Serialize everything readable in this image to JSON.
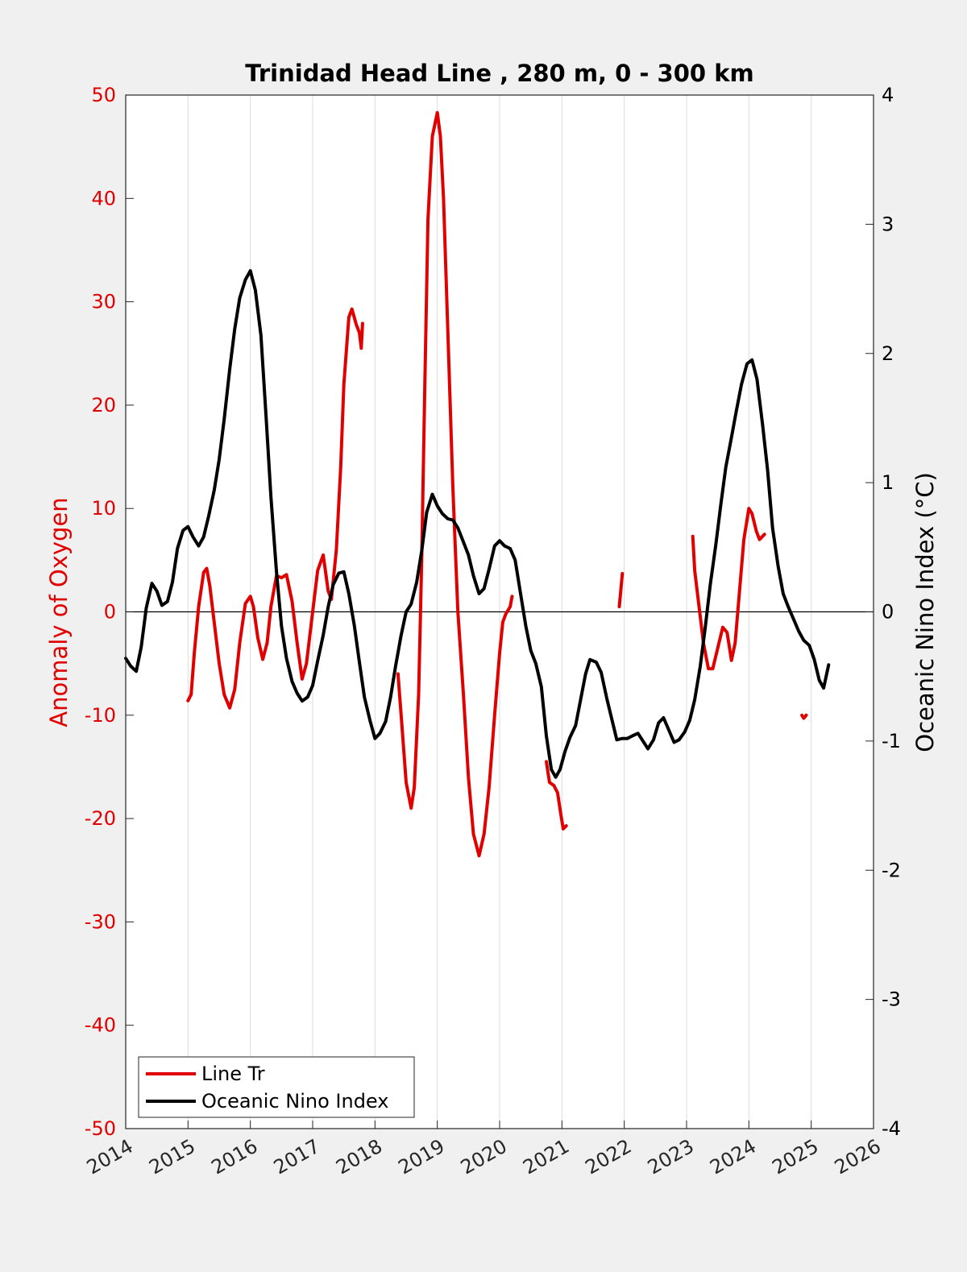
{
  "chart_data": {
    "type": "line",
    "title": "Trinidad Head Line , 280 m, 0 - 300 km",
    "xlabel": "",
    "ylabel_left": "Anomaly of Oxygen",
    "ylabel_right": "Oceanic Nino Index (°C)",
    "xlim": [
      2014,
      2026
    ],
    "ylim_left": [
      -50,
      50
    ],
    "ylim_right": [
      -4,
      4
    ],
    "x_ticks": [
      "2014",
      "2015",
      "2016",
      "2017",
      "2018",
      "2019",
      "2020",
      "2021",
      "2022",
      "2023",
      "2024",
      "2025",
      "2026"
    ],
    "y_ticks_left": [
      "-50",
      "-40",
      "-30",
      "-20",
      "-10",
      "0",
      "10",
      "20",
      "30",
      "40",
      "50"
    ],
    "y_ticks_right": [
      "-4",
      "-3",
      "-2",
      "-1",
      "0",
      "1",
      "2",
      "3",
      "4"
    ],
    "grid": "vertical",
    "zero_line": true,
    "legend_position": "bottom-left",
    "colors": {
      "oxygen": "#e00000",
      "oni": "#000000",
      "left_axis": "#e00000",
      "right_axis": "#000000"
    },
    "series": [
      {
        "name": "Line Tr",
        "axis": "left",
        "color": "#e00000",
        "segments": [
          [
            [
              2015.0,
              -8.6
            ],
            [
              2015.05,
              -8.0
            ],
            [
              2015.1,
              -4.0
            ],
            [
              2015.17,
              0.5
            ],
            [
              2015.25,
              3.8
            ],
            [
              2015.3,
              4.2
            ],
            [
              2015.35,
              2.5
            ],
            [
              2015.42,
              -1.0
            ],
            [
              2015.5,
              -5.0
            ],
            [
              2015.58,
              -8.0
            ],
            [
              2015.67,
              -9.3
            ],
            [
              2015.75,
              -7.5
            ],
            [
              2015.83,
              -3.0
            ],
            [
              2015.92,
              0.8
            ],
            [
              2016.0,
              1.5
            ],
            [
              2016.05,
              0.5
            ],
            [
              2016.12,
              -2.5
            ],
            [
              2016.2,
              -4.6
            ],
            [
              2016.27,
              -3.0
            ],
            [
              2016.33,
              0.5
            ],
            [
              2016.42,
              3.5
            ],
            [
              2016.5,
              3.3
            ],
            [
              2016.58,
              3.6
            ],
            [
              2016.67,
              1.0
            ],
            [
              2016.75,
              -3.0
            ],
            [
              2016.83,
              -6.5
            ],
            [
              2016.9,
              -5.0
            ],
            [
              2017.0,
              0.0
            ],
            [
              2017.08,
              4.0
            ],
            [
              2017.17,
              5.5
            ],
            [
              2017.25,
              2.0
            ],
            [
              2017.3,
              1.2
            ],
            [
              2017.38,
              6.0
            ],
            [
              2017.45,
              14.0
            ],
            [
              2017.5,
              22.0
            ],
            [
              2017.58,
              28.5
            ],
            [
              2017.63,
              29.3
            ],
            [
              2017.7,
              27.8
            ],
            [
              2017.75,
              27.0
            ],
            [
              2017.78,
              25.5
            ],
            [
              2017.8,
              27.9
            ]
          ],
          [
            [
              2018.37,
              -6.0
            ],
            [
              2018.42,
              -10.0
            ],
            [
              2018.5,
              -16.5
            ],
            [
              2018.58,
              -19.0
            ],
            [
              2018.63,
              -17.0
            ],
            [
              2018.7,
              -8.0
            ],
            [
              2018.75,
              5.0
            ],
            [
              2018.8,
              22.0
            ],
            [
              2018.85,
              38.0
            ],
            [
              2018.92,
              46.0
            ],
            [
              2019.0,
              48.3
            ],
            [
              2019.05,
              46.0
            ],
            [
              2019.1,
              40.0
            ],
            [
              2019.17,
              27.0
            ],
            [
              2019.25,
              12.0
            ],
            [
              2019.33,
              0.0
            ],
            [
              2019.42,
              -8.0
            ],
            [
              2019.5,
              -16.0
            ],
            [
              2019.58,
              -21.5
            ],
            [
              2019.67,
              -23.6
            ],
            [
              2019.75,
              -21.5
            ],
            [
              2019.83,
              -17.0
            ],
            [
              2019.92,
              -10.0
            ],
            [
              2020.0,
              -4.0
            ],
            [
              2020.05,
              -1.0
            ],
            [
              2020.1,
              -0.2
            ],
            [
              2020.17,
              0.5
            ],
            [
              2020.2,
              1.5
            ]
          ],
          [
            [
              2020.75,
              -14.5
            ],
            [
              2020.8,
              -16.5
            ],
            [
              2020.87,
              -16.8
            ],
            [
              2020.93,
              -17.5
            ],
            [
              2020.98,
              -19.5
            ],
            [
              2021.02,
              -21.0
            ],
            [
              2021.07,
              -20.7
            ]
          ],
          [
            [
              2021.92,
              0.5
            ],
            [
              2021.97,
              3.7
            ]
          ],
          [
            [
              2023.1,
              7.3
            ],
            [
              2023.13,
              4.0
            ],
            [
              2023.2,
              0.5
            ],
            [
              2023.27,
              -3.0
            ],
            [
              2023.35,
              -5.5
            ],
            [
              2023.42,
              -5.5
            ],
            [
              2023.5,
              -3.5
            ],
            [
              2023.58,
              -1.5
            ],
            [
              2023.65,
              -2.0
            ],
            [
              2023.72,
              -4.7
            ],
            [
              2023.78,
              -3.0
            ],
            [
              2023.85,
              2.0
            ],
            [
              2023.92,
              7.0
            ],
            [
              2024.0,
              10.0
            ],
            [
              2024.05,
              9.5
            ],
            [
              2024.12,
              7.8
            ],
            [
              2024.17,
              7.0
            ],
            [
              2024.25,
              7.5
            ]
          ],
          [
            [
              2024.85,
              -10.0
            ],
            [
              2024.88,
              -10.3
            ],
            [
              2024.92,
              -10.0
            ]
          ]
        ]
      },
      {
        "name": "Oceanic Nino Index",
        "axis": "right",
        "color": "#000000",
        "segments": [
          [
            [
              2014.0,
              -0.36
            ],
            [
              2014.08,
              -0.42
            ],
            [
              2014.17,
              -0.46
            ],
            [
              2014.25,
              -0.27
            ],
            [
              2014.33,
              0.03
            ],
            [
              2014.42,
              0.22
            ],
            [
              2014.5,
              0.16
            ],
            [
              2014.58,
              0.05
            ],
            [
              2014.67,
              0.08
            ],
            [
              2014.75,
              0.23
            ],
            [
              2014.83,
              0.49
            ],
            [
              2014.92,
              0.63
            ],
            [
              2015.0,
              0.66
            ],
            [
              2015.08,
              0.58
            ],
            [
              2015.17,
              0.51
            ],
            [
              2015.25,
              0.58
            ],
            [
              2015.33,
              0.74
            ],
            [
              2015.42,
              0.94
            ],
            [
              2015.5,
              1.18
            ],
            [
              2015.58,
              1.49
            ],
            [
              2015.67,
              1.88
            ],
            [
              2015.75,
              2.19
            ],
            [
              2015.83,
              2.43
            ],
            [
              2015.92,
              2.57
            ],
            [
              2016.0,
              2.64
            ],
            [
              2016.08,
              2.49
            ],
            [
              2016.17,
              2.14
            ],
            [
              2016.25,
              1.53
            ],
            [
              2016.33,
              0.89
            ],
            [
              2016.42,
              0.31
            ],
            [
              2016.5,
              -0.11
            ],
            [
              2016.58,
              -0.36
            ],
            [
              2016.67,
              -0.54
            ],
            [
              2016.75,
              -0.63
            ],
            [
              2016.83,
              -0.69
            ],
            [
              2016.92,
              -0.66
            ],
            [
              2017.0,
              -0.57
            ],
            [
              2017.08,
              -0.38
            ],
            [
              2017.17,
              -0.18
            ],
            [
              2017.25,
              0.04
            ],
            [
              2017.33,
              0.21
            ],
            [
              2017.42,
              0.3
            ],
            [
              2017.5,
              0.31
            ],
            [
              2017.58,
              0.14
            ],
            [
              2017.67,
              -0.11
            ],
            [
              2017.75,
              -0.39
            ],
            [
              2017.83,
              -0.66
            ],
            [
              2017.92,
              -0.84
            ],
            [
              2018.0,
              -0.98
            ],
            [
              2018.08,
              -0.94
            ],
            [
              2018.17,
              -0.85
            ],
            [
              2018.25,
              -0.66
            ],
            [
              2018.33,
              -0.42
            ],
            [
              2018.42,
              -0.18
            ],
            [
              2018.5,
              0.0
            ],
            [
              2018.58,
              0.06
            ],
            [
              2018.67,
              0.23
            ],
            [
              2018.75,
              0.47
            ],
            [
              2018.83,
              0.77
            ],
            [
              2018.92,
              0.91
            ],
            [
              2019.0,
              0.82
            ],
            [
              2019.08,
              0.76
            ],
            [
              2019.17,
              0.72
            ],
            [
              2019.25,
              0.71
            ],
            [
              2019.33,
              0.65
            ],
            [
              2019.42,
              0.54
            ],
            [
              2019.5,
              0.44
            ],
            [
              2019.58,
              0.28
            ],
            [
              2019.67,
              0.14
            ],
            [
              2019.75,
              0.18
            ],
            [
              2019.83,
              0.33
            ],
            [
              2019.92,
              0.51
            ],
            [
              2020.0,
              0.55
            ],
            [
              2020.08,
              0.51
            ],
            [
              2020.17,
              0.49
            ],
            [
              2020.25,
              0.4
            ],
            [
              2020.33,
              0.16
            ],
            [
              2020.42,
              -0.11
            ],
            [
              2020.5,
              -0.3
            ],
            [
              2020.58,
              -0.4
            ],
            [
              2020.67,
              -0.58
            ],
            [
              2020.75,
              -0.96
            ],
            [
              2020.83,
              -1.22
            ],
            [
              2020.9,
              -1.28
            ],
            [
              2020.97,
              -1.22
            ],
            [
              2021.05,
              -1.08
            ],
            [
              2021.13,
              -0.97
            ],
            [
              2021.22,
              -0.88
            ],
            [
              2021.3,
              -0.68
            ],
            [
              2021.38,
              -0.48
            ],
            [
              2021.45,
              -0.37
            ],
            [
              2021.55,
              -0.39
            ],
            [
              2021.63,
              -0.47
            ],
            [
              2021.72,
              -0.67
            ],
            [
              2021.8,
              -0.83
            ],
            [
              2021.88,
              -0.99
            ],
            [
              2021.97,
              -0.98
            ],
            [
              2022.05,
              -0.98
            ],
            [
              2022.13,
              -0.96
            ],
            [
              2022.22,
              -0.94
            ],
            [
              2022.3,
              -1.0
            ],
            [
              2022.38,
              -1.06
            ],
            [
              2022.47,
              -0.99
            ],
            [
              2022.55,
              -0.86
            ],
            [
              2022.63,
              -0.82
            ],
            [
              2022.72,
              -0.92
            ],
            [
              2022.8,
              -1.01
            ],
            [
              2022.88,
              -0.99
            ],
            [
              2022.97,
              -0.93
            ],
            [
              2023.05,
              -0.84
            ],
            [
              2023.13,
              -0.68
            ],
            [
              2023.22,
              -0.42
            ],
            [
              2023.3,
              -0.12
            ],
            [
              2023.38,
              0.21
            ],
            [
              2023.47,
              0.52
            ],
            [
              2023.55,
              0.83
            ],
            [
              2023.63,
              1.12
            ],
            [
              2023.72,
              1.35
            ],
            [
              2023.8,
              1.56
            ],
            [
              2023.88,
              1.76
            ],
            [
              2023.97,
              1.92
            ],
            [
              2024.05,
              1.95
            ],
            [
              2024.13,
              1.8
            ],
            [
              2024.22,
              1.45
            ],
            [
              2024.3,
              1.1
            ],
            [
              2024.38,
              0.65
            ],
            [
              2024.47,
              0.35
            ],
            [
              2024.55,
              0.14
            ],
            [
              2024.63,
              0.04
            ],
            [
              2024.72,
              -0.06
            ],
            [
              2024.8,
              -0.15
            ],
            [
              2024.88,
              -0.22
            ],
            [
              2024.97,
              -0.26
            ],
            [
              2025.05,
              -0.37
            ],
            [
              2025.13,
              -0.53
            ],
            [
              2025.2,
              -0.59
            ],
            [
              2025.28,
              -0.41
            ]
          ]
        ]
      }
    ]
  }
}
